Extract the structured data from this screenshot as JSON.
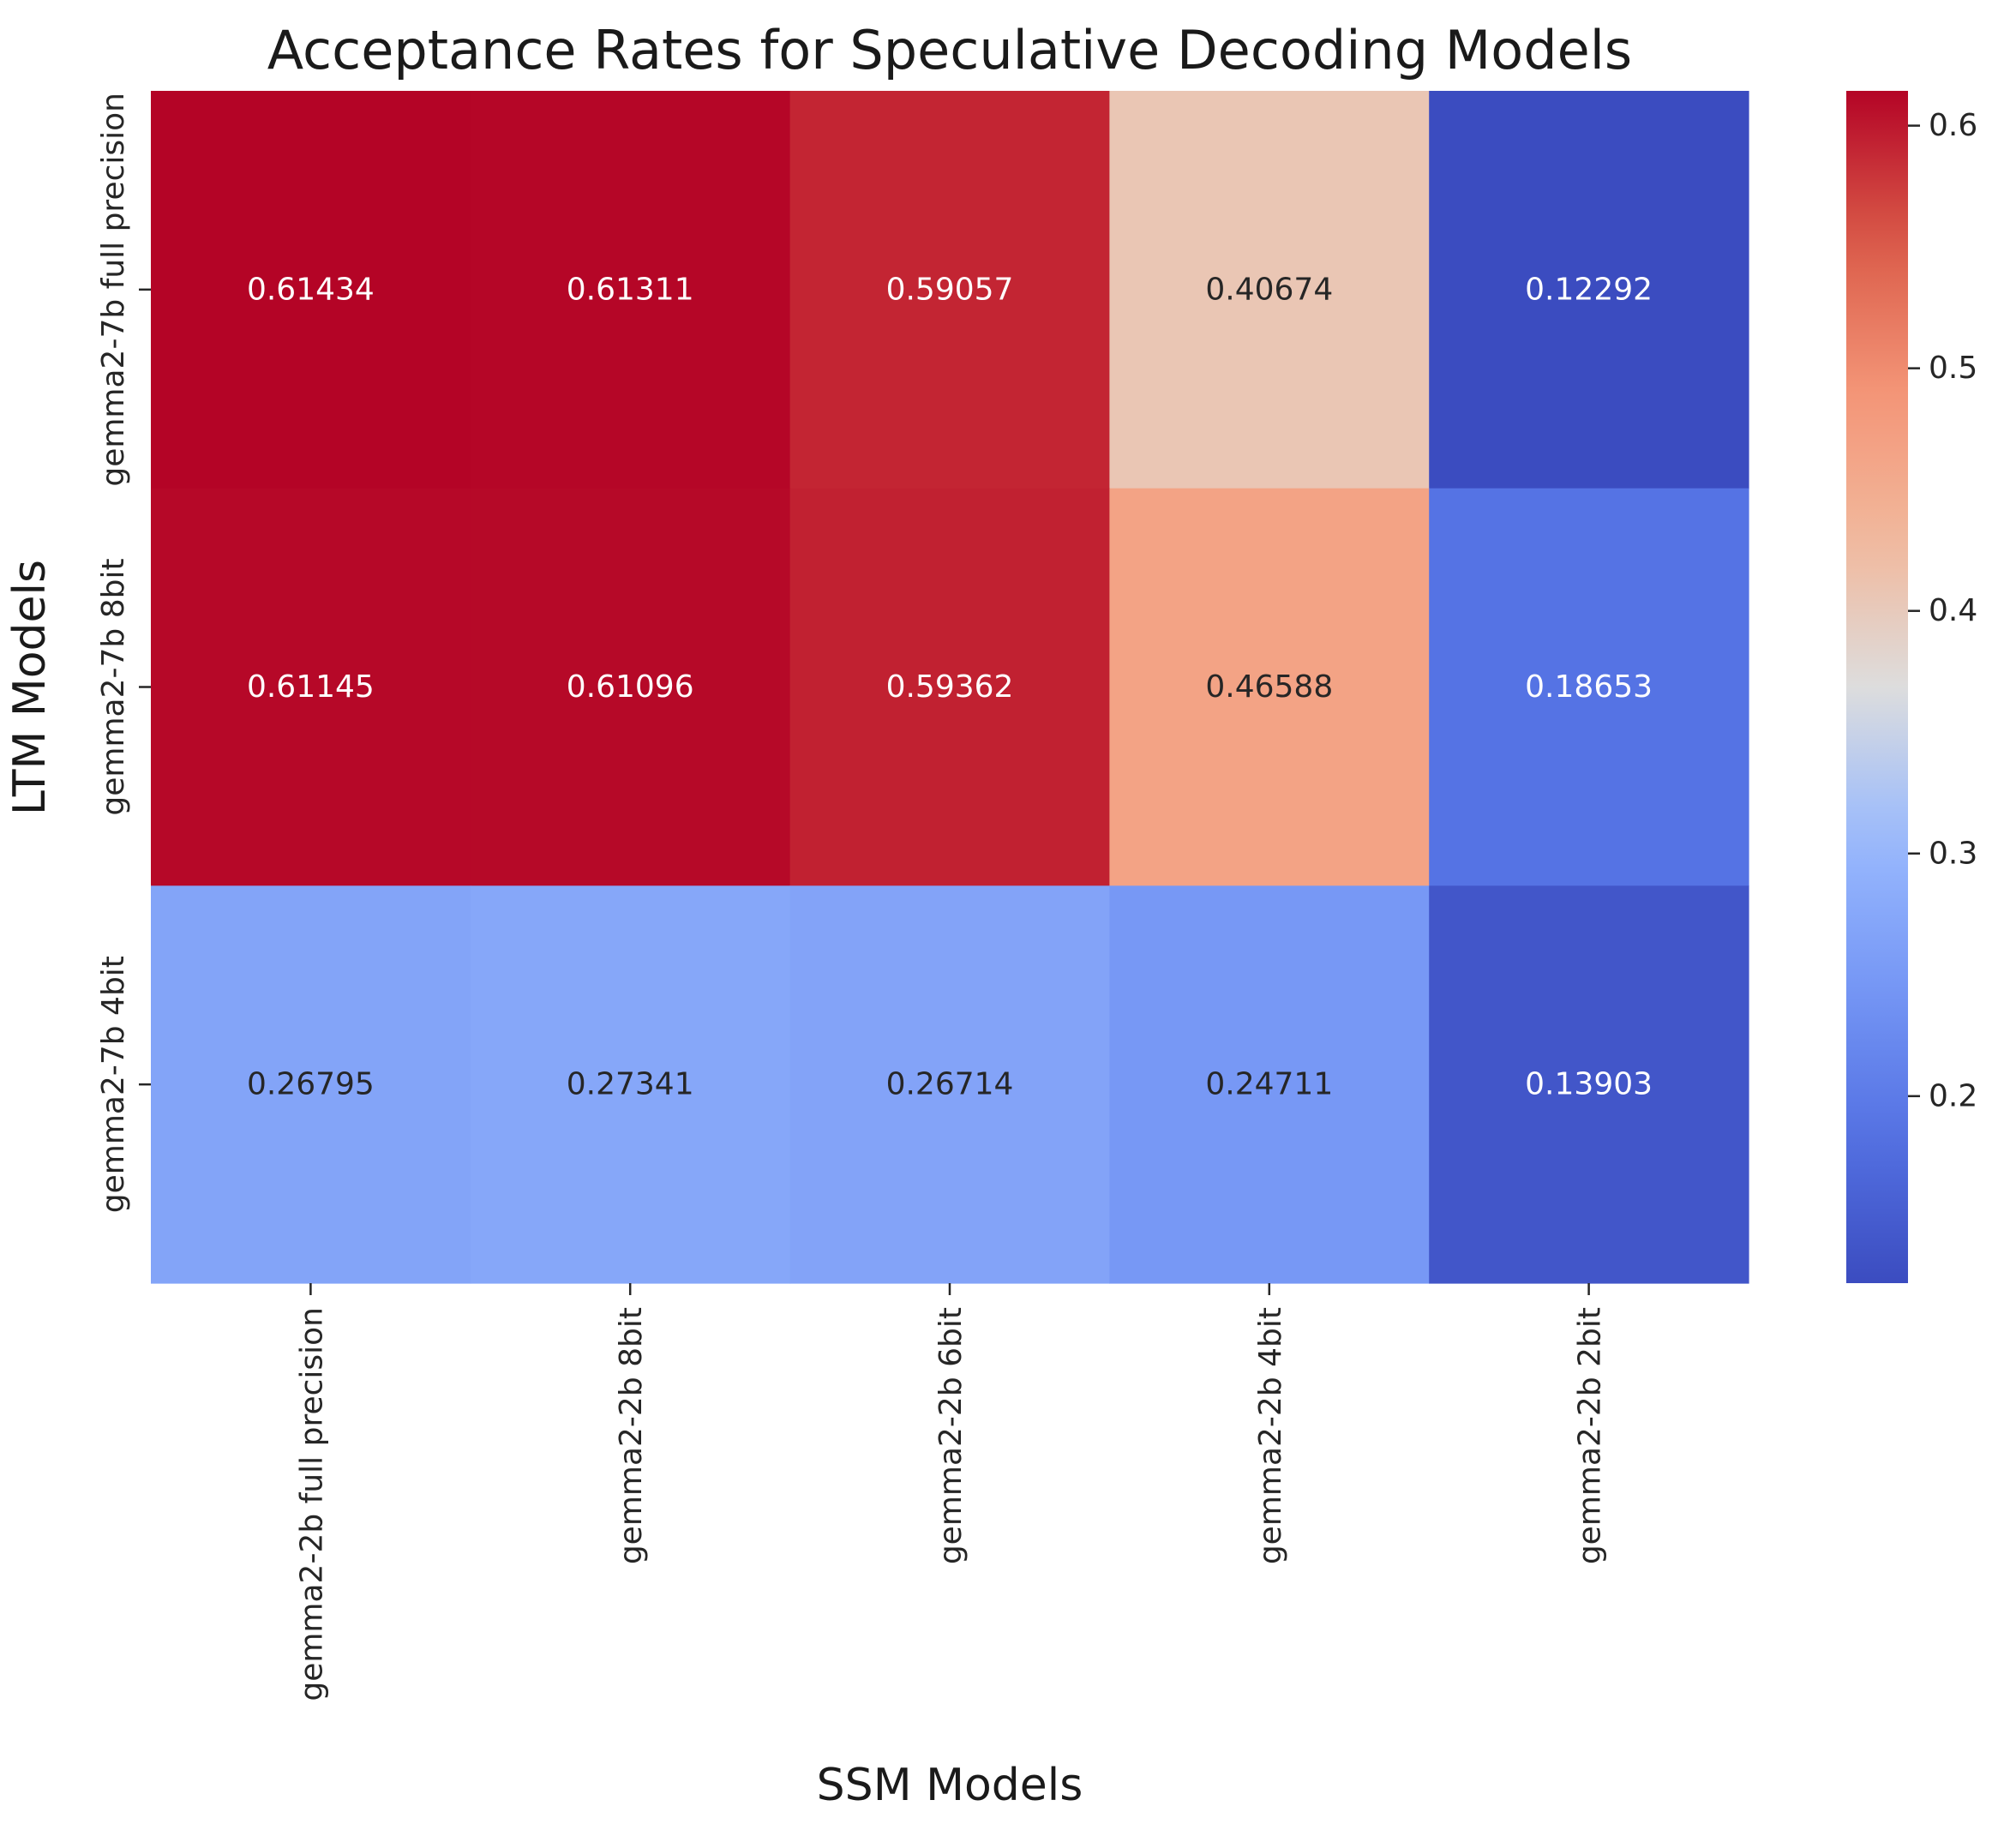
{
  "chart_data": {
    "type": "heatmap",
    "title": "Acceptance Rates for Speculative Decoding Models",
    "xlabel": "SSM Models",
    "ylabel": "LTM Models",
    "x_categories": [
      "gemma2-2b full precision",
      "gemma2-2b 8bit",
      "gemma2-2b 6bit",
      "gemma2-2b 4bit",
      "gemma2-2b 2bit"
    ],
    "y_categories": [
      "gemma2-7b full precision",
      "gemma2-7b 8bit",
      "gemma2-7b 4bit"
    ],
    "values": [
      [
        0.61434,
        0.61311,
        0.59057,
        0.40674,
        0.12292
      ],
      [
        0.61145,
        0.61096,
        0.59362,
        0.46588,
        0.18653
      ],
      [
        0.26795,
        0.27341,
        0.26714,
        0.24711,
        0.13903
      ]
    ],
    "cell_labels": [
      [
        "0.61434",
        "0.61311",
        "0.59057",
        "0.40674",
        "0.12292"
      ],
      [
        "0.61145",
        "0.61096",
        "0.59362",
        "0.46588",
        "0.18653"
      ],
      [
        "0.26795",
        "0.27341",
        "0.26714",
        "0.24711",
        "0.13903"
      ]
    ],
    "colormap": "coolwarm",
    "vmin": 0.12292,
    "vmax": 0.61434,
    "colorbar": {
      "ticks": [
        0.2,
        0.3,
        0.4,
        0.5,
        0.6
      ],
      "tick_labels": [
        "0.2",
        "0.3",
        "0.4",
        "0.5",
        "0.6"
      ]
    },
    "grid": false
  }
}
